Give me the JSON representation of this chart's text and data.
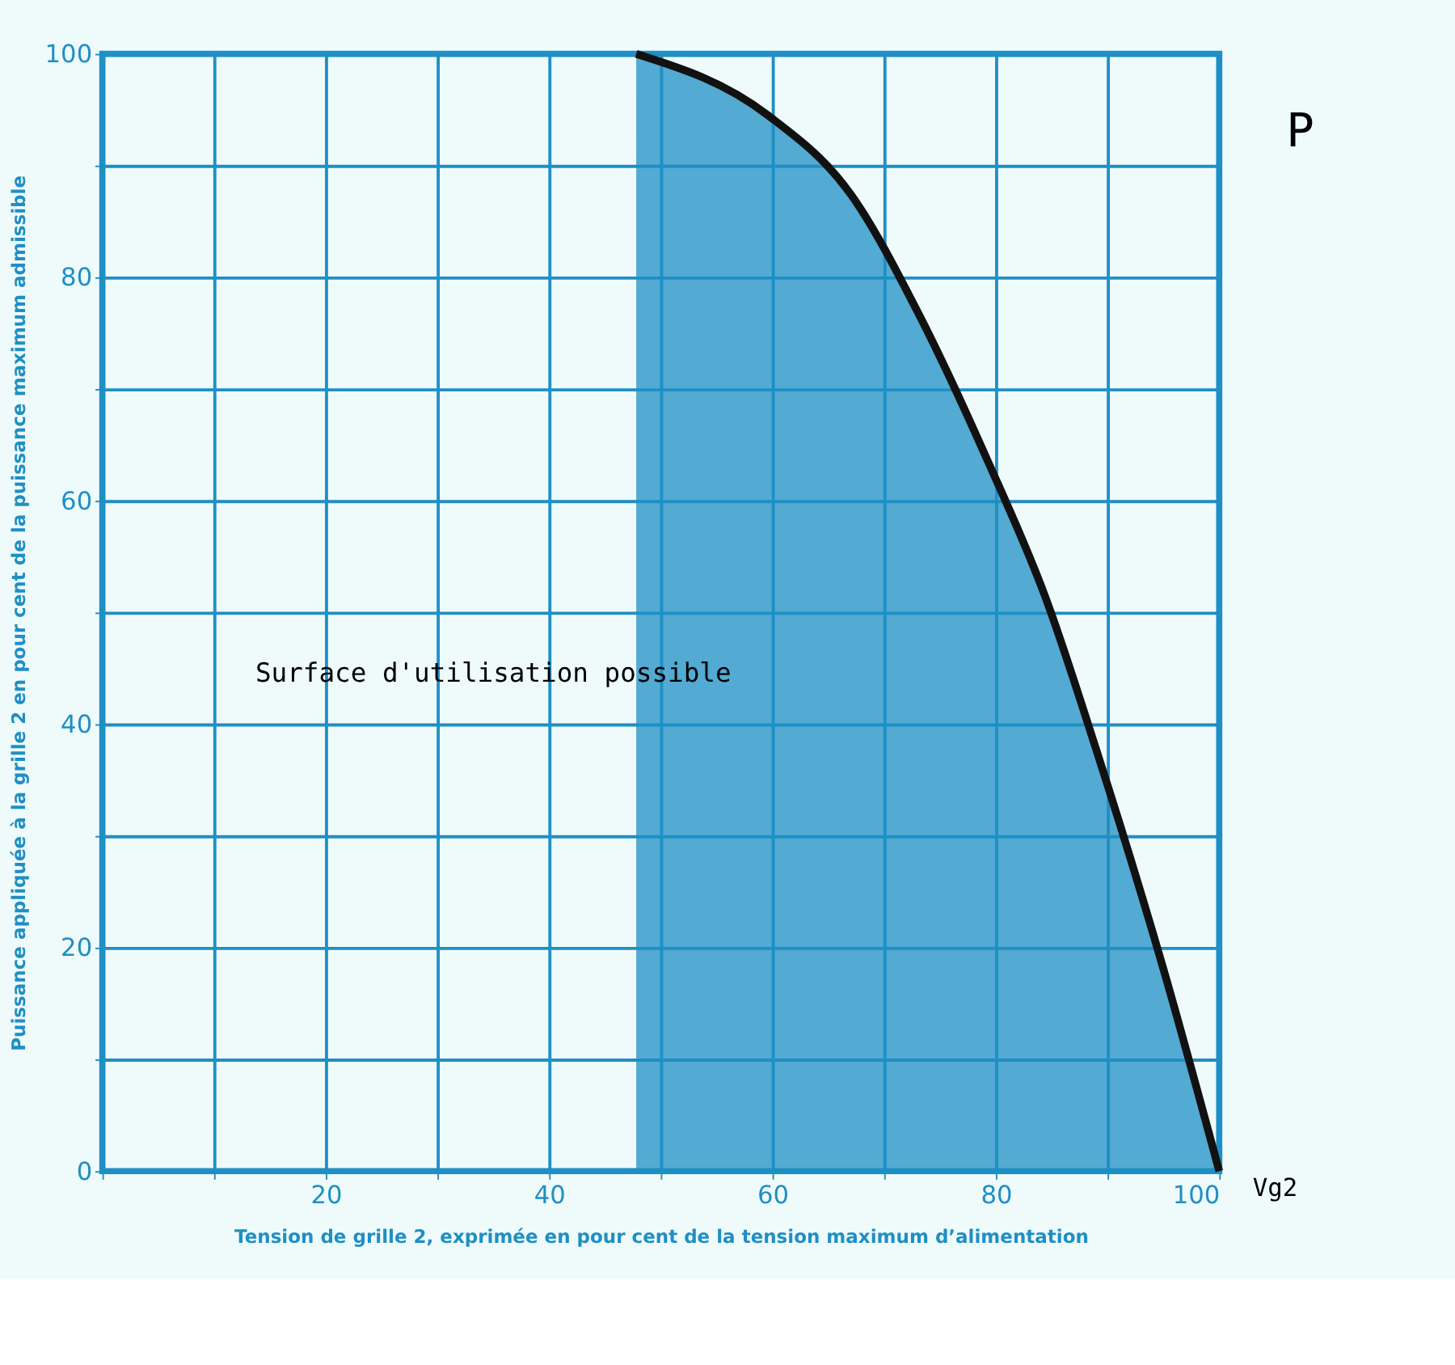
{
  "chart_data": {
    "type": "area",
    "xlabel": "Tension de grille 2, exprimée en pour cent de la tension maximum d’alimentation",
    "ylabel": "Puissance appliquée à la grille 2 en pour cent de la puissance maximum admissible",
    "x": [
      47.8,
      59.6,
      67.1,
      73.1,
      79.3,
      84.5,
      88.9,
      95.0,
      100
    ],
    "series": [
      {
        "color": "#1f8fc4",
        "values": [
          100,
          94.5,
          87.3,
          76.7,
          63.5,
          51.2,
          38.0,
          18.1,
          0
        ]
      }
    ],
    "xlim": [
      0,
      100
    ],
    "ylim": [
      0,
      100
    ],
    "xticks": [
      {
        "value": 0,
        "label": null
      },
      {
        "value": 10,
        "label": null
      },
      20,
      {
        "value": 30,
        "label": null
      },
      40,
      {
        "value": 50,
        "label": null
      },
      60,
      {
        "value": 70,
        "label": null
      },
      80,
      {
        "value": 90,
        "label": null
      },
      100
    ],
    "yticks": [
      0,
      {
        "value": 10,
        "label": null
      },
      20,
      {
        "value": 30,
        "label": null
      },
      40,
      {
        "value": 50,
        "label": null
      },
      60,
      {
        "value": 70,
        "label": null
      },
      80,
      {
        "value": 90,
        "label": null
      },
      100
    ],
    "grid": true,
    "line_style": "solid",
    "annotations": [
      "Surface d'utilisation possible",
      "Vg2",
      "P"
    ]
  }
}
